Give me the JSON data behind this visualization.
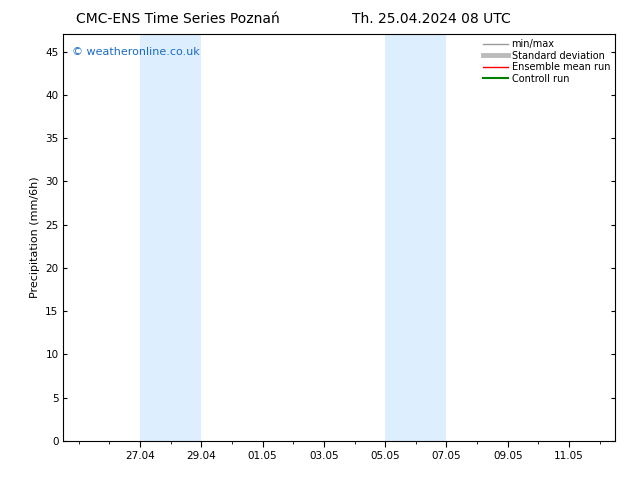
{
  "title_left": "CMC-ENS Time Series Poznań",
  "title_right": "Th. 25.04.2024 08 UTC",
  "ylabel": "Precipitation (mm/6h)",
  "watermark": "© weatheronline.co.uk",
  "x_tick_labels": [
    "27.04",
    "29.04",
    "01.05",
    "03.05",
    "05.05",
    "07.05",
    "09.05",
    "11.05"
  ],
  "y_min": 0,
  "y_max": 47,
  "y_ticks": [
    0,
    5,
    10,
    15,
    20,
    25,
    30,
    35,
    40,
    45
  ],
  "shaded_bands": [
    {
      "day_start": 27,
      "month_start": 4,
      "day_end": 29,
      "month_end": 4
    },
    {
      "day_start": 5,
      "month_start": 5,
      "day_end": 7,
      "month_end": 5
    }
  ],
  "shaded_color": "#ddeeff",
  "legend_entries": [
    {
      "label": "min/max",
      "color": "#999999",
      "lw": 1.0
    },
    {
      "label": "Standard deviation",
      "color": "#bbbbbb",
      "lw": 3.5
    },
    {
      "label": "Ensemble mean run",
      "color": "#ff0000",
      "lw": 1.0
    },
    {
      "label": "Controll run",
      "color": "#008000",
      "lw": 1.5
    }
  ],
  "bg_color": "#ffffff",
  "title_fontsize": 10,
  "label_fontsize": 8,
  "tick_fontsize": 7.5,
  "watermark_color": "#1a6bc2",
  "watermark_fontsize": 8,
  "legend_fontsize": 7
}
